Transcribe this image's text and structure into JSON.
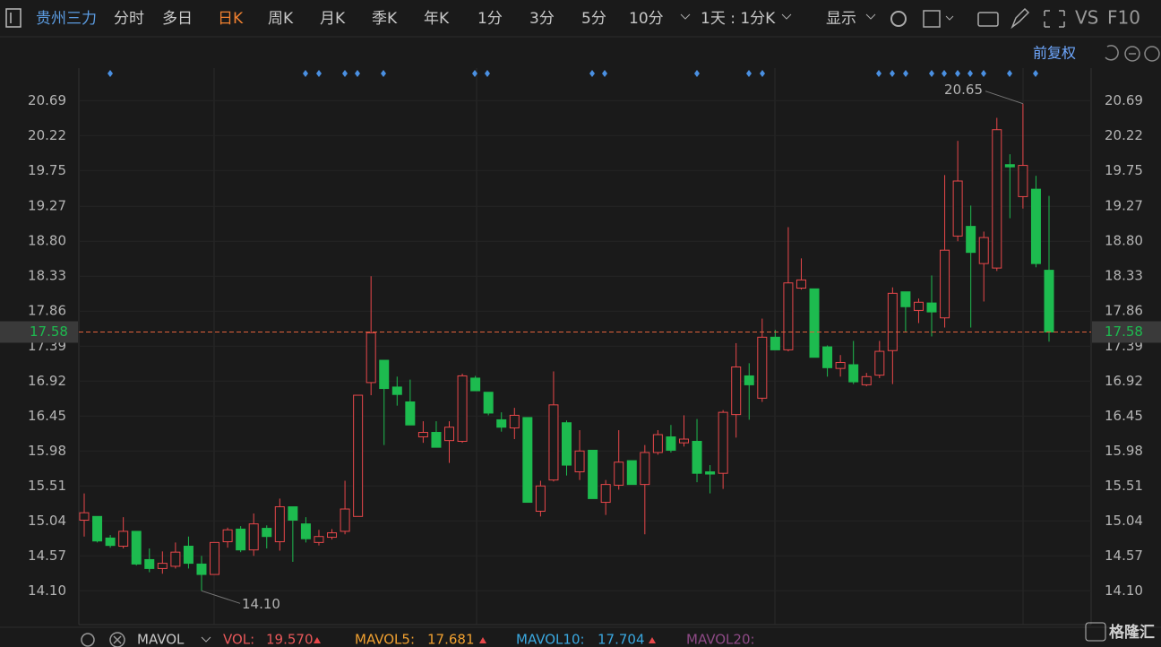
{
  "toolbar": {
    "stock": "贵州三力",
    "tabs": [
      "分时",
      "多日",
      "日K",
      "周K",
      "月K",
      "季K",
      "年K",
      "1分",
      "3分",
      "5分",
      "10分"
    ],
    "period": "1天 : 1分K",
    "display": "显示",
    "vs": "VS",
    "f10": "F10",
    "adjust": "前复权"
  },
  "chart_data": {
    "type": "candlestick",
    "open": [
      15.05,
      15.1,
      14.81,
      14.7,
      14.9,
      14.52,
      14.4,
      14.43,
      14.7,
      14.46,
      14.32,
      14.76,
      14.93,
      14.65,
      14.94,
      14.76,
      15.23,
      15.0,
      14.75,
      14.82,
      14.9,
      15.1,
      16.9,
      17.2,
      16.84,
      16.64,
      16.17,
      16.23,
      16.12,
      16.11,
      16.96,
      16.77,
      16.4,
      16.29,
      16.43,
      15.17,
      15.59,
      16.36,
      15.7,
      15.99,
      15.29,
      15.52,
      15.85,
      15.53,
      15.96,
      16.17,
      16.09,
      16.11,
      15.7,
      15.68,
      16.47,
      16.99,
      16.69,
      17.51,
      17.34,
      18.17,
      18.16,
      17.38,
      17.09,
      17.14,
      16.87,
      17.0,
      17.33,
      18.12,
      17.87,
      17.97,
      17.77,
      18.87,
      19.0,
      18.5,
      18.44,
      19.83,
      19.4,
      19.5,
      18.41
    ],
    "high": [
      15.41,
      15.1,
      14.85,
      15.09,
      14.9,
      14.67,
      14.63,
      14.75,
      14.83,
      14.57,
      14.75,
      14.95,
      14.97,
      15.14,
      14.98,
      15.34,
      15.23,
      15.09,
      14.92,
      14.93,
      15.58,
      16.73,
      18.33,
      17.2,
      16.98,
      16.94,
      16.38,
      16.38,
      16.38,
      17.02,
      16.99,
      16.77,
      16.5,
      16.56,
      16.43,
      15.58,
      17.05,
      16.39,
      16.26,
      15.99,
      15.59,
      16.26,
      15.85,
      16.06,
      16.26,
      16.33,
      16.46,
      16.41,
      15.79,
      16.53,
      17.43,
      17.16,
      17.76,
      17.61,
      18.99,
      18.57,
      18.16,
      17.4,
      17.27,
      17.46,
      17.03,
      17.46,
      18.18,
      18.12,
      18.03,
      18.34,
      19.69,
      20.15,
      19.28,
      18.93,
      20.46,
      19.97,
      20.65,
      19.68,
      19.41
    ],
    "low": [
      14.83,
      14.75,
      14.68,
      14.67,
      14.44,
      14.35,
      14.33,
      14.4,
      14.4,
      14.1,
      14.32,
      14.68,
      14.62,
      14.57,
      14.67,
      14.64,
      14.49,
      14.75,
      14.71,
      14.79,
      14.86,
      15.1,
      16.73,
      16.06,
      16.59,
      16.33,
      16.09,
      16.03,
      15.82,
      16.09,
      16.79,
      16.46,
      16.24,
      16.14,
      15.29,
      15.1,
      15.57,
      15.65,
      15.59,
      15.34,
      15.12,
      15.46,
      15.53,
      14.86,
      15.93,
      15.96,
      16.04,
      15.56,
      15.41,
      15.47,
      16.16,
      16.4,
      16.64,
      17.34,
      17.32,
      18.15,
      17.24,
      16.98,
      16.98,
      16.88,
      16.85,
      16.96,
      16.88,
      17.58,
      17.7,
      17.52,
      17.64,
      18.8,
      17.64,
      17.99,
      18.4,
      19.11,
      19.24,
      18.45,
      17.45
    ],
    "close": [
      15.15,
      14.77,
      14.71,
      14.9,
      14.46,
      14.4,
      14.47,
      14.62,
      14.47,
      14.32,
      14.75,
      14.92,
      14.65,
      15.0,
      14.83,
      15.23,
      15.05,
      14.8,
      14.83,
      14.88,
      15.2,
      16.73,
      17.57,
      16.82,
      16.74,
      16.33,
      16.23,
      16.03,
      16.3,
      16.99,
      16.79,
      16.49,
      16.3,
      16.46,
      15.29,
      15.51,
      16.6,
      15.79,
      15.98,
      15.34,
      15.53,
      15.83,
      15.53,
      15.96,
      16.2,
      15.99,
      16.14,
      15.68,
      15.67,
      16.5,
      17.11,
      16.87,
      17.51,
      17.34,
      18.24,
      18.28,
      17.24,
      17.1,
      17.17,
      16.91,
      16.98,
      17.32,
      18.1,
      17.92,
      17.98,
      17.85,
      18.68,
      19.61,
      18.65,
      18.85,
      20.3,
      19.8,
      19.82,
      18.5,
      17.58
    ],
    "up_color": "#e8474a",
    "down_color": "#1dbb4f",
    "ylim": [
      13.67,
      21.08
    ],
    "yticks": [
      {
        "value": 14.1,
        "label": "14.10"
      },
      14.57,
      15.04,
      15.51,
      15.98,
      16.45,
      16.92,
      17.39,
      17.86,
      18.33,
      {
        "value": 18.8,
        "label": "18.80"
      },
      19.27,
      19.75,
      20.22,
      20.69
    ],
    "extremes": [
      20.65,
      {
        "value": 14.1,
        "label": "14.10"
      }
    ],
    "last_price": 17.58
  },
  "indicator": {
    "name": "MAVOL",
    "items": [
      {
        "name": "VOL:",
        "value": {
          "value": 19.57,
          "label": "19.570"
        },
        "color": "#e8585a"
      },
      {
        "name": "MAVOL5:",
        "value": 17.681,
        "color": "#f0a030"
      },
      {
        "name": "MAVOL10:",
        "value": 17.704,
        "color": "#3aa8e0"
      },
      {
        "name": "MAVOL20:",
        "color": "#8e4a86"
      }
    ]
  },
  "watermark": "格隆汇"
}
